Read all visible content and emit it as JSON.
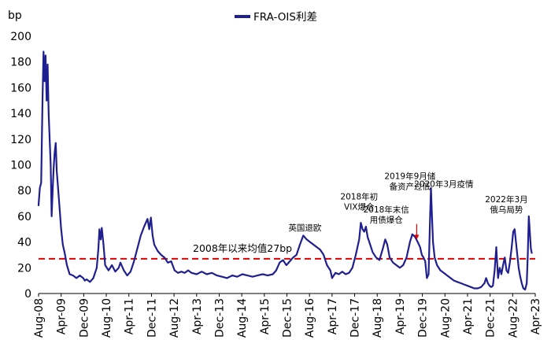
{
  "chart_data": {
    "type": "line",
    "title": "",
    "ylabel": "bp",
    "xlabel": "",
    "ylim": [
      0,
      200
    ],
    "yticks": [
      0,
      20,
      40,
      60,
      80,
      100,
      120,
      140,
      160,
      180,
      200
    ],
    "xlim": [
      2008.583,
      2023.25
    ],
    "xticks": [
      {
        "label": "Aug-08",
        "t": 2008.583
      },
      {
        "label": "Apr-09",
        "t": 2009.25
      },
      {
        "label": "Dec-09",
        "t": 2009.917
      },
      {
        "label": "Aug-10",
        "t": 2010.583
      },
      {
        "label": "Apr-11",
        "t": 2011.25
      },
      {
        "label": "Dec-11",
        "t": 2011.917
      },
      {
        "label": "Aug-12",
        "t": 2012.583
      },
      {
        "label": "Apr-13",
        "t": 2013.25
      },
      {
        "label": "Dec-13",
        "t": 2013.917
      },
      {
        "label": "Aug-14",
        "t": 2014.583
      },
      {
        "label": "Apr-15",
        "t": 2015.25
      },
      {
        "label": "Dec-15",
        "t": 2015.917
      },
      {
        "label": "Aug-16",
        "t": 2016.583
      },
      {
        "label": "Apr-17",
        "t": 2017.25
      },
      {
        "label": "Dec-17",
        "t": 2017.917
      },
      {
        "label": "Aug-18",
        "t": 2018.583
      },
      {
        "label": "Apr-19",
        "t": 2019.25
      },
      {
        "label": "Dec-19",
        "t": 2019.917
      },
      {
        "label": "Aug-20",
        "t": 2020.583
      },
      {
        "label": "Apr-21",
        "t": 2021.25
      },
      {
        "label": "Dec-21",
        "t": 2021.917
      },
      {
        "label": "Aug-22",
        "t": 2022.583
      },
      {
        "label": "Apr-23",
        "t": 2023.25
      }
    ],
    "series": [
      {
        "name": "FRA-OIS利差",
        "color": "#1f1f8f",
        "points": [
          [
            2008.58,
            68
          ],
          [
            2008.62,
            82
          ],
          [
            2008.66,
            86
          ],
          [
            2008.7,
            150
          ],
          [
            2008.73,
            188
          ],
          [
            2008.76,
            165
          ],
          [
            2008.79,
            185
          ],
          [
            2008.82,
            150
          ],
          [
            2008.85,
            178
          ],
          [
            2008.88,
            140
          ],
          [
            2008.91,
            120
          ],
          [
            2008.94,
            100
          ],
          [
            2008.97,
            60
          ],
          [
            2009.0,
            80
          ],
          [
            2009.03,
            98
          ],
          [
            2009.06,
            110
          ],
          [
            2009.09,
            117
          ],
          [
            2009.12,
            95
          ],
          [
            2009.15,
            85
          ],
          [
            2009.2,
            68
          ],
          [
            2009.25,
            50
          ],
          [
            2009.3,
            38
          ],
          [
            2009.35,
            32
          ],
          [
            2009.42,
            22
          ],
          [
            2009.5,
            15
          ],
          [
            2009.6,
            14
          ],
          [
            2009.7,
            12
          ],
          [
            2009.8,
            14
          ],
          [
            2009.9,
            12
          ],
          [
            2009.95,
            10
          ],
          [
            2010.0,
            11
          ],
          [
            2010.1,
            9
          ],
          [
            2010.2,
            12
          ],
          [
            2010.3,
            20
          ],
          [
            2010.35,
            35
          ],
          [
            2010.38,
            50
          ],
          [
            2010.42,
            42
          ],
          [
            2010.45,
            51
          ],
          [
            2010.5,
            38
          ],
          [
            2010.55,
            22
          ],
          [
            2010.65,
            18
          ],
          [
            2010.75,
            22
          ],
          [
            2010.85,
            17
          ],
          [
            2010.95,
            20
          ],
          [
            2011.0,
            24
          ],
          [
            2011.1,
            18
          ],
          [
            2011.2,
            14
          ],
          [
            2011.3,
            17
          ],
          [
            2011.4,
            25
          ],
          [
            2011.5,
            35
          ],
          [
            2011.6,
            45
          ],
          [
            2011.7,
            52
          ],
          [
            2011.8,
            58
          ],
          [
            2011.85,
            50
          ],
          [
            2011.9,
            59
          ],
          [
            2011.95,
            45
          ],
          [
            2012.0,
            38
          ],
          [
            2012.1,
            33
          ],
          [
            2012.2,
            30
          ],
          [
            2012.3,
            28
          ],
          [
            2012.4,
            24
          ],
          [
            2012.5,
            25
          ],
          [
            2012.6,
            18
          ],
          [
            2012.7,
            16
          ],
          [
            2012.8,
            17
          ],
          [
            2012.9,
            16
          ],
          [
            2013.0,
            18
          ],
          [
            2013.1,
            16
          ],
          [
            2013.25,
            15
          ],
          [
            2013.4,
            17
          ],
          [
            2013.55,
            15
          ],
          [
            2013.7,
            16
          ],
          [
            2013.85,
            14
          ],
          [
            2014.0,
            13
          ],
          [
            2014.15,
            12
          ],
          [
            2014.3,
            14
          ],
          [
            2014.45,
            13
          ],
          [
            2014.6,
            15
          ],
          [
            2014.75,
            14
          ],
          [
            2014.9,
            13
          ],
          [
            2015.05,
            14
          ],
          [
            2015.2,
            15
          ],
          [
            2015.35,
            14
          ],
          [
            2015.5,
            15
          ],
          [
            2015.6,
            18
          ],
          [
            2015.7,
            24
          ],
          [
            2015.8,
            26
          ],
          [
            2015.9,
            22
          ],
          [
            2016.0,
            25
          ],
          [
            2016.1,
            28
          ],
          [
            2016.2,
            30
          ],
          [
            2016.3,
            38
          ],
          [
            2016.4,
            45
          ],
          [
            2016.5,
            42
          ],
          [
            2016.6,
            40
          ],
          [
            2016.7,
            38
          ],
          [
            2016.8,
            36
          ],
          [
            2016.9,
            34
          ],
          [
            2017.0,
            30
          ],
          [
            2017.1,
            22
          ],
          [
            2017.2,
            18
          ],
          [
            2017.25,
            12
          ],
          [
            2017.35,
            16
          ],
          [
            2017.45,
            15
          ],
          [
            2017.55,
            17
          ],
          [
            2017.65,
            15
          ],
          [
            2017.75,
            16
          ],
          [
            2017.85,
            20
          ],
          [
            2017.95,
            30
          ],
          [
            2018.05,
            42
          ],
          [
            2018.1,
            55
          ],
          [
            2018.15,
            50
          ],
          [
            2018.2,
            48
          ],
          [
            2018.25,
            52
          ],
          [
            2018.3,
            44
          ],
          [
            2018.35,
            40
          ],
          [
            2018.45,
            32
          ],
          [
            2018.55,
            28
          ],
          [
            2018.65,
            26
          ],
          [
            2018.75,
            35
          ],
          [
            2018.82,
            42
          ],
          [
            2018.88,
            38
          ],
          [
            2018.95,
            28
          ],
          [
            2019.05,
            24
          ],
          [
            2019.15,
            22
          ],
          [
            2019.25,
            20
          ],
          [
            2019.35,
            22
          ],
          [
            2019.45,
            28
          ],
          [
            2019.55,
            40
          ],
          [
            2019.62,
            46
          ],
          [
            2019.7,
            44
          ],
          [
            2019.78,
            40
          ],
          [
            2019.85,
            36
          ],
          [
            2019.9,
            30
          ],
          [
            2019.95,
            28
          ],
          [
            2020.0,
            25
          ],
          [
            2020.05,
            12
          ],
          [
            2020.1,
            15
          ],
          [
            2020.14,
            55
          ],
          [
            2020.17,
            82
          ],
          [
            2020.2,
            60
          ],
          [
            2020.23,
            40
          ],
          [
            2020.28,
            28
          ],
          [
            2020.35,
            22
          ],
          [
            2020.45,
            18
          ],
          [
            2020.55,
            16
          ],
          [
            2020.65,
            14
          ],
          [
            2020.75,
            12
          ],
          [
            2020.85,
            10
          ],
          [
            2020.95,
            9
          ],
          [
            2021.05,
            8
          ],
          [
            2021.15,
            7
          ],
          [
            2021.25,
            6
          ],
          [
            2021.35,
            5
          ],
          [
            2021.45,
            4
          ],
          [
            2021.55,
            4
          ],
          [
            2021.65,
            5
          ],
          [
            2021.75,
            8
          ],
          [
            2021.8,
            12
          ],
          [
            2021.85,
            8
          ],
          [
            2021.9,
            6
          ],
          [
            2021.95,
            5
          ],
          [
            2022.0,
            6
          ],
          [
            2022.05,
            18
          ],
          [
            2022.1,
            36
          ],
          [
            2022.15,
            12
          ],
          [
            2022.2,
            20
          ],
          [
            2022.25,
            15
          ],
          [
            2022.3,
            22
          ],
          [
            2022.35,
            28
          ],
          [
            2022.4,
            18
          ],
          [
            2022.45,
            16
          ],
          [
            2022.5,
            24
          ],
          [
            2022.55,
            35
          ],
          [
            2022.6,
            48
          ],
          [
            2022.64,
            50
          ],
          [
            2022.68,
            40
          ],
          [
            2022.72,
            30
          ],
          [
            2022.76,
            20
          ],
          [
            2022.8,
            14
          ],
          [
            2022.85,
            8
          ],
          [
            2022.9,
            4
          ],
          [
            2022.95,
            3
          ],
          [
            2023.0,
            8
          ],
          [
            2023.03,
            30
          ],
          [
            2023.06,
            60
          ],
          [
            2023.09,
            48
          ],
          [
            2023.12,
            35
          ],
          [
            2023.15,
            31
          ]
        ]
      }
    ],
    "average": {
      "value": 27,
      "label": "2008年以来均值27bp",
      "color": "#e00000"
    },
    "annotations": [
      {
        "lines": [
          "英国退欧"
        ],
        "t": 2016.45,
        "y": 49
      },
      {
        "lines": [
          "2018年初",
          "VIX爆仓"
        ],
        "t": 2018.05,
        "y": 65
      },
      {
        "lines": [
          "2018年末信",
          "用债爆仓"
        ],
        "t": 2018.85,
        "y": 55
      },
      {
        "lines": [
          "2019年9月储",
          "备资产过低"
        ],
        "t": 2019.55,
        "y": 81
      },
      {
        "lines": [
          "2020年3月疫情"
        ],
        "t": 2020.55,
        "y": 83
      },
      {
        "lines": [
          "2022年3月",
          "俄乌局势"
        ],
        "t": 2022.4,
        "y": 63
      }
    ],
    "arrow": {
      "from": [
        2019.75,
        54
      ],
      "to": [
        2019.75,
        42
      ]
    },
    "legend": {
      "label": "FRA-OIS利差",
      "position": "top-center"
    }
  }
}
